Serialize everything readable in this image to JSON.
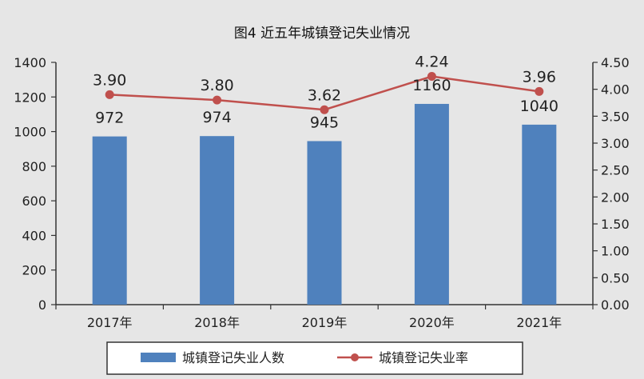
{
  "chart_data": {
    "type": "bar",
    "title": "图4  近五年城镇登记失业情况",
    "categories": [
      "2017年",
      "2018年",
      "2019年",
      "2020年",
      "2021年"
    ],
    "series": [
      {
        "name": "城镇登记失业人数",
        "type": "bar",
        "axis": "left",
        "values": [
          972,
          974,
          945,
          1160,
          1040
        ],
        "labels": [
          "972",
          "974",
          "945",
          "1160",
          "1040"
        ],
        "color": "#4f81bd"
      },
      {
        "name": "城镇登记失业率",
        "type": "line",
        "axis": "right",
        "values": [
          3.9,
          3.8,
          3.62,
          4.24,
          3.96
        ],
        "labels": [
          "3.90",
          "3.80",
          "3.62",
          "4.24",
          "3.96"
        ],
        "color": "#c0504d"
      }
    ],
    "y_left": {
      "min": 0,
      "max": 1400,
      "ticks": [
        0,
        200,
        400,
        600,
        800,
        1000,
        1200,
        1400
      ],
      "tick_labels": [
        "0",
        "200",
        "400",
        "600",
        "800",
        "1000",
        "1200",
        "1400"
      ]
    },
    "y_right": {
      "min": 0,
      "max": 4.5,
      "ticks": [
        0,
        0.5,
        1,
        1.5,
        2,
        2.5,
        3,
        3.5,
        4,
        4.5
      ],
      "tick_labels": [
        "0.00",
        "0.50",
        "1.00",
        "1.50",
        "2.00",
        "2.50",
        "3.00",
        "3.50",
        "4.00",
        "4.50"
      ]
    },
    "grid": false,
    "legend_position": "bottom"
  }
}
